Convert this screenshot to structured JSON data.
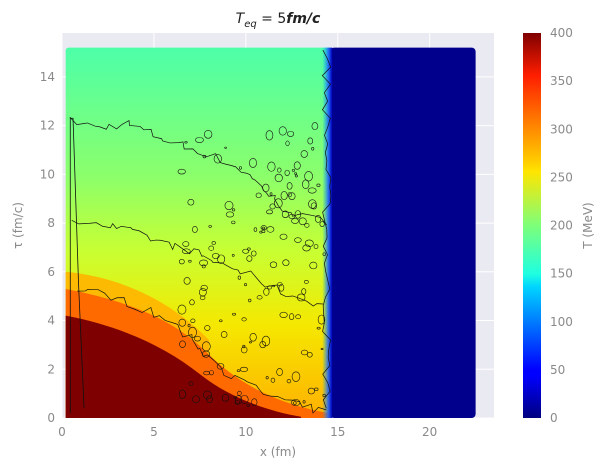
{
  "chart_data": {
    "type": "heatmap",
    "title": "T_eq = 5fm/c",
    "title_parts": {
      "symbol": "T",
      "subscript": "eq",
      "rest": " = 5",
      "units": "fm/c"
    },
    "xlabel": "x (fm)",
    "ylabel": "τ (fm/c)",
    "colorbar_label": "T (MeV)",
    "xlim": [
      0,
      23.5
    ],
    "ylim": [
      0,
      15.8
    ],
    "xticks": [
      0,
      5,
      10,
      15,
      20
    ],
    "yticks": [
      0,
      2,
      4,
      6,
      8,
      10,
      12,
      14
    ],
    "colorbar_range": [
      0,
      400
    ],
    "colorbar_ticks": [
      0,
      50,
      100,
      150,
      200,
      250,
      300,
      350,
      400
    ],
    "colormap": "jet",
    "grid": true,
    "background": "#eaeaf2",
    "contour_color": "#000000",
    "data_extent": {
      "x": [
        0.2,
        22.5
      ],
      "tau": [
        0,
        15.2
      ]
    },
    "front_x": 14.7,
    "description_regions": [
      {
        "x": [
          0,
          14.5
        ],
        "tau": [
          12,
          15.2
        ],
        "T": 185
      },
      {
        "x": [
          0,
          14.5
        ],
        "tau": [
          8,
          12
        ],
        "T": 205
      },
      {
        "x": [
          0,
          7
        ],
        "tau": [
          5,
          8
        ],
        "T": 280
      },
      {
        "x": [
          0,
          5
        ],
        "tau": [
          0,
          5
        ],
        "T": 400
      },
      {
        "x": [
          14.7,
          22.5
        ],
        "tau": [
          0,
          15.2
        ],
        "T": 0
      }
    ]
  }
}
